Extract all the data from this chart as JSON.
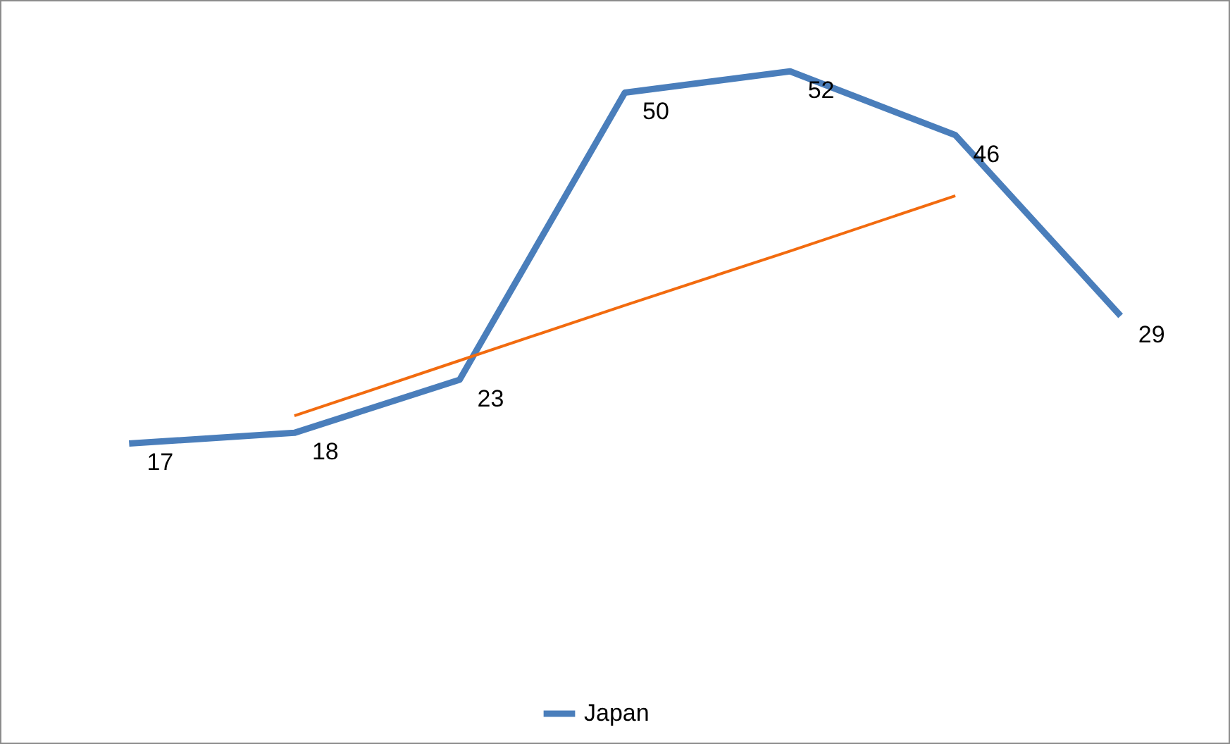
{
  "chart_data": {
    "type": "line",
    "categories": [
      null,
      null,
      null,
      null,
      null,
      null,
      null
    ],
    "series": [
      {
        "name": "Japan",
        "color": "#4a7ebb",
        "values": [
          17,
          18,
          23,
          50,
          52,
          46,
          29
        ],
        "value_labels": [
          "17",
          "18",
          "23",
          "50",
          "52",
          "46",
          "29"
        ]
      },
      {
        "type": "line",
        "color": "#f26b0f",
        "values": [
          null,
          19.6,
          24.8,
          30.0,
          35.1,
          40.3,
          null
        ]
      }
    ],
    "legend": "bottom",
    "tick_labels": false,
    "grid": false
  }
}
